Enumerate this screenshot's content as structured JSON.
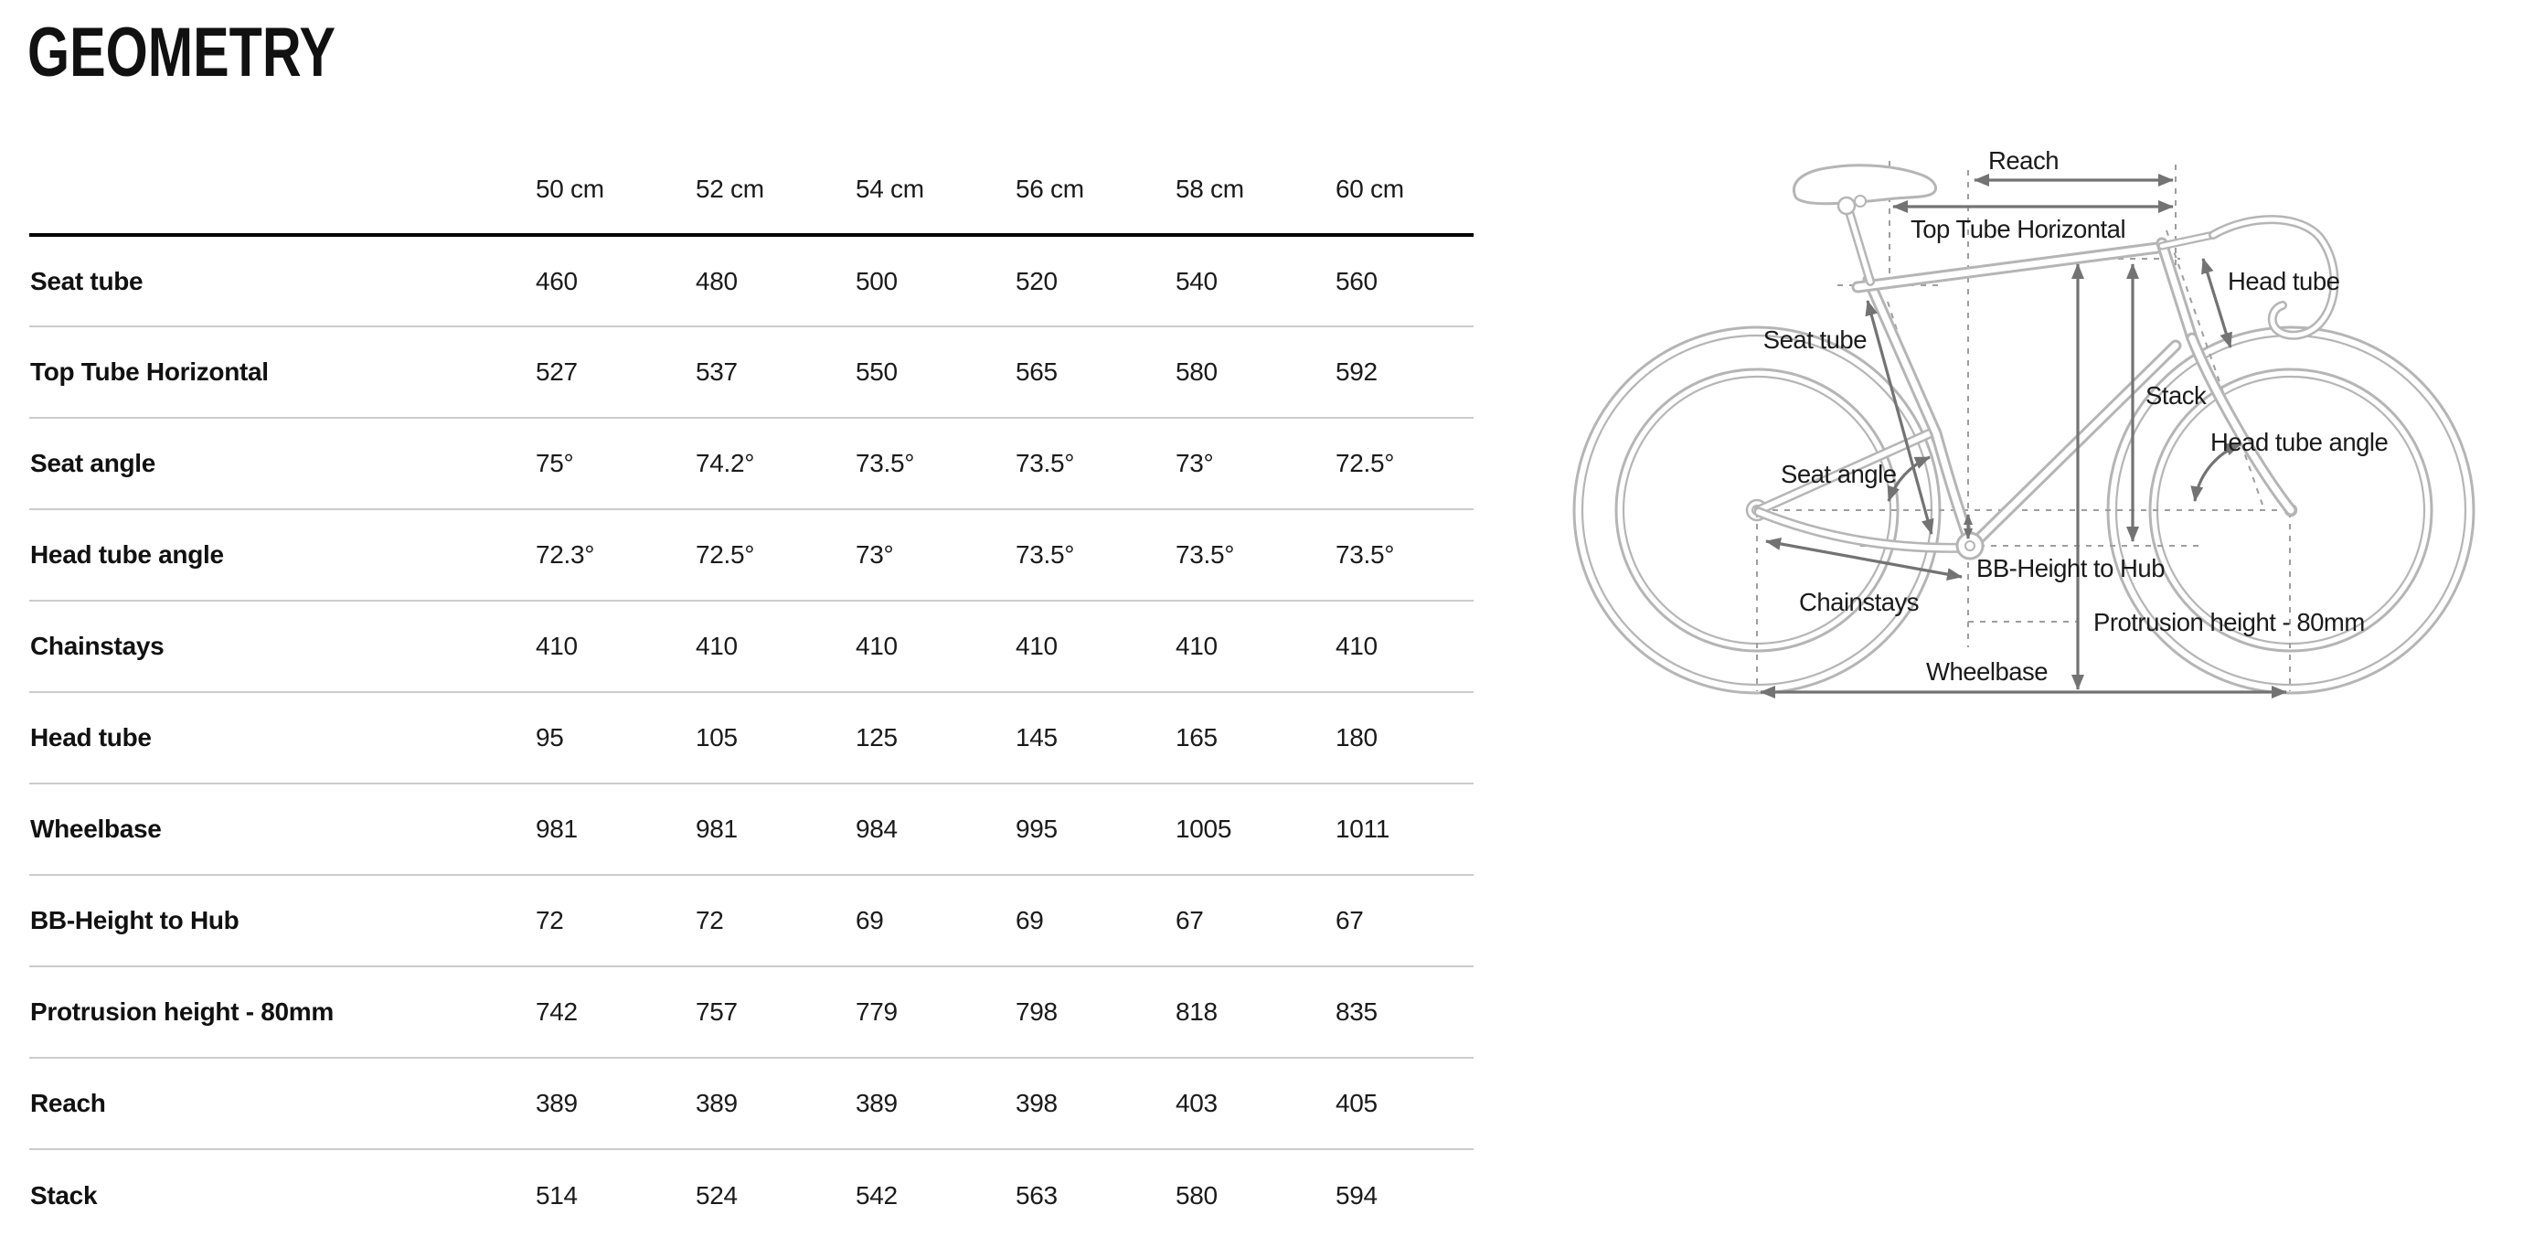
{
  "page": {
    "title": "GEOMETRY"
  },
  "geometry_table": {
    "size_headers": [
      "50 cm",
      "52 cm",
      "54 cm",
      "56 cm",
      "58 cm",
      "60 cm"
    ],
    "rows": [
      {
        "label": "Seat tube",
        "values": [
          "460",
          "480",
          "500",
          "520",
          "540",
          "560"
        ]
      },
      {
        "label": "Top Tube Horizontal",
        "values": [
          "527",
          "537",
          "550",
          "565",
          "580",
          "592"
        ]
      },
      {
        "label": "Seat angle",
        "values": [
          "75°",
          "74.2°",
          "73.5°",
          "73.5°",
          "73°",
          "72.5°"
        ]
      },
      {
        "label": "Head tube angle",
        "values": [
          "72.3°",
          "72.5°",
          "73°",
          "73.5°",
          "73.5°",
          "73.5°"
        ]
      },
      {
        "label": "Chainstays",
        "values": [
          "410",
          "410",
          "410",
          "410",
          "410",
          "410"
        ]
      },
      {
        "label": "Head tube",
        "values": [
          "95",
          "105",
          "125",
          "145",
          "165",
          "180"
        ]
      },
      {
        "label": "Wheelbase",
        "values": [
          "981",
          "981",
          "984",
          "995",
          "1005",
          "1011"
        ]
      },
      {
        "label": "BB-Height to Hub",
        "values": [
          "72",
          "72",
          "69",
          "69",
          "67",
          "67"
        ]
      },
      {
        "label": "Protrusion height - 80mm",
        "values": [
          "742",
          "757",
          "779",
          "798",
          "818",
          "835"
        ]
      },
      {
        "label": "Reach",
        "values": [
          "389",
          "389",
          "389",
          "398",
          "403",
          "405"
        ]
      },
      {
        "label": "Stack",
        "values": [
          "514",
          "524",
          "542",
          "563",
          "580",
          "594"
        ]
      }
    ]
  },
  "diagram": {
    "labels": {
      "reach": "Reach",
      "top_tube_horizontal": "Top Tube Horizontal",
      "head_tube": "Head tube",
      "seat_tube": "Seat tube",
      "stack": "Stack",
      "head_tube_angle": "Head tube angle",
      "seat_angle": "Seat angle",
      "bb_height_to_hub": "BB-Height to Hub",
      "chainstays": "Chainstays",
      "protrusion_height": "Protrusion height - 80mm",
      "wheelbase": "Wheelbase"
    }
  },
  "colors": {
    "title_text": "#111111",
    "table_text": "#1a1a1a",
    "row_divider": "#cccccc",
    "header_rule": "#000000",
    "bike_line": "#b5b5b5",
    "dimension_arrow": "#737373",
    "reference_dash": "#9e9e9e"
  }
}
